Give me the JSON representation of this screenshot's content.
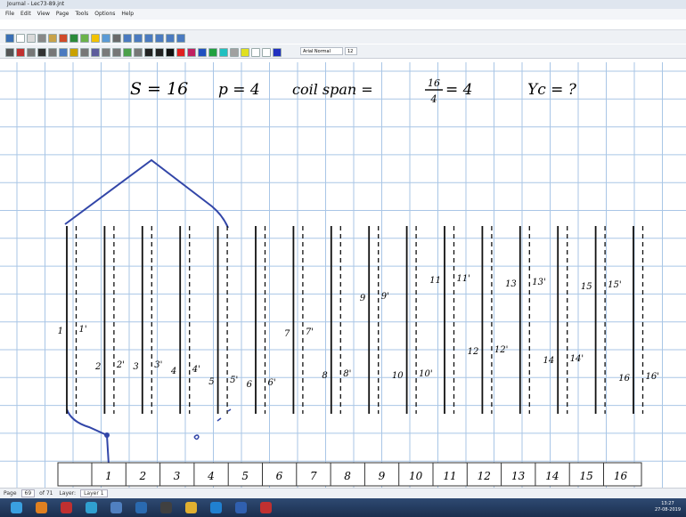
{
  "window": {
    "title": "Journal - Lec73-89.jnt",
    "menu": [
      "File",
      "Edit",
      "View",
      "Page",
      "Tools",
      "Options",
      "Help"
    ],
    "font_name": "Arial Normal",
    "font_size": "12"
  },
  "notes": {
    "s": "S = 16",
    "p": "p = 4",
    "coil_span": "coil span =",
    "numerator": "16",
    "denominator": "4",
    "span_result": "= 4",
    "yc": "Yc = ?"
  },
  "conductors": [
    {
      "label": "1",
      "dash_label": "1'"
    },
    {
      "label": "2",
      "dash_label": "2'"
    },
    {
      "label": "3",
      "dash_label": "3'"
    },
    {
      "label": "4",
      "dash_label": "4'"
    },
    {
      "label": "5",
      "dash_label": "5'"
    },
    {
      "label": "6",
      "dash_label": "6'"
    },
    {
      "label": "7",
      "dash_label": "7'"
    },
    {
      "label": "8",
      "dash_label": "8'"
    },
    {
      "label": "9",
      "dash_label": "9'"
    },
    {
      "label": "10",
      "dash_label": "10'"
    },
    {
      "label": "11",
      "dash_label": "11'"
    },
    {
      "label": "12",
      "dash_label": "12'"
    },
    {
      "label": "13",
      "dash_label": "13'"
    },
    {
      "label": "14",
      "dash_label": "14'"
    },
    {
      "label": "15",
      "dash_label": "15'"
    },
    {
      "label": "16",
      "dash_label": "16'"
    }
  ],
  "commutator": [
    "1",
    "2",
    "3",
    "4",
    "5",
    "6",
    "7",
    "8",
    "9",
    "10",
    "11",
    "12",
    "13",
    "14",
    "15",
    "16"
  ],
  "status": {
    "page_label": "Page",
    "page": "69",
    "of": "of 71",
    "layer_label": "Layer:",
    "layer": "Layer 1"
  },
  "clock": {
    "time": "13:27",
    "date": "27-08-2019"
  }
}
